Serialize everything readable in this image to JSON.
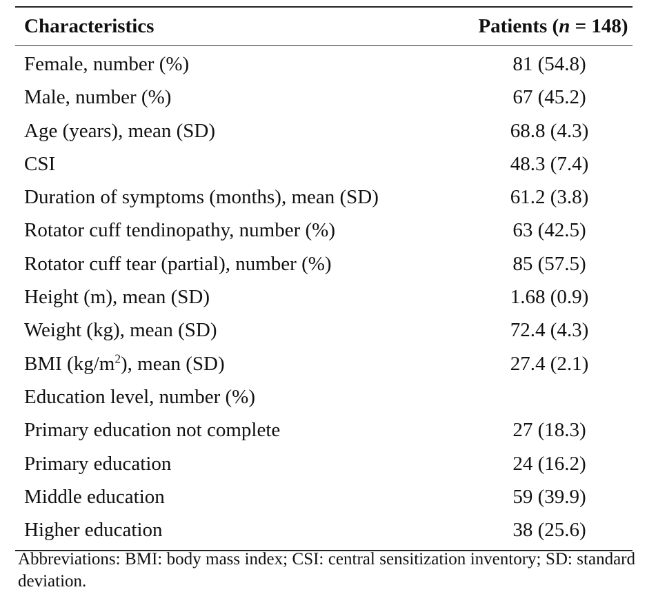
{
  "table": {
    "header": {
      "characteristics": "Characteristics",
      "patients_prefix": "Patients (",
      "patients_n": "n",
      "patients_suffix": " = 148)"
    },
    "rows": [
      {
        "label": "Female, number (%)",
        "value": "81 (54.8)"
      },
      {
        "label": "Male, number (%)",
        "value": "67 (45.2)"
      },
      {
        "label": "Age (years), mean (SD)",
        "value": "68.8 (4.3)"
      },
      {
        "label": "CSI",
        "value": "48.3 (7.4)"
      },
      {
        "label": "Duration of symptoms (months), mean (SD)",
        "value": "61.2 (3.8)"
      },
      {
        "label": "Rotator cuff tendinopathy, number (%)",
        "value": "63 (42.5)"
      },
      {
        "label": "Rotator cuff tear (partial), number (%)",
        "value": "85 (57.5)"
      },
      {
        "label": "Height (m), mean (SD)",
        "value": "1.68 (0.9)"
      },
      {
        "label": "Weight (kg), mean (SD)",
        "value": "72.4 (4.3)"
      },
      {
        "label_prefix": "BMI (kg/m",
        "label_sup": "2",
        "label_suffix": "), mean (SD)",
        "value": "27.4 (2.1)"
      },
      {
        "label": "Education level, number (%)",
        "value": ""
      },
      {
        "label": "Primary education not complete",
        "value": "27 (18.3)"
      },
      {
        "label": "Primary education",
        "value": "24 (16.2)"
      },
      {
        "label": "Middle education",
        "value": "59 (39.9)"
      },
      {
        "label": "Higher education",
        "value": "38 (25.6)"
      }
    ]
  },
  "footnote": "Abbreviations: BMI: body mass index; CSI: central sensitization inventory; SD: standard deviation."
}
